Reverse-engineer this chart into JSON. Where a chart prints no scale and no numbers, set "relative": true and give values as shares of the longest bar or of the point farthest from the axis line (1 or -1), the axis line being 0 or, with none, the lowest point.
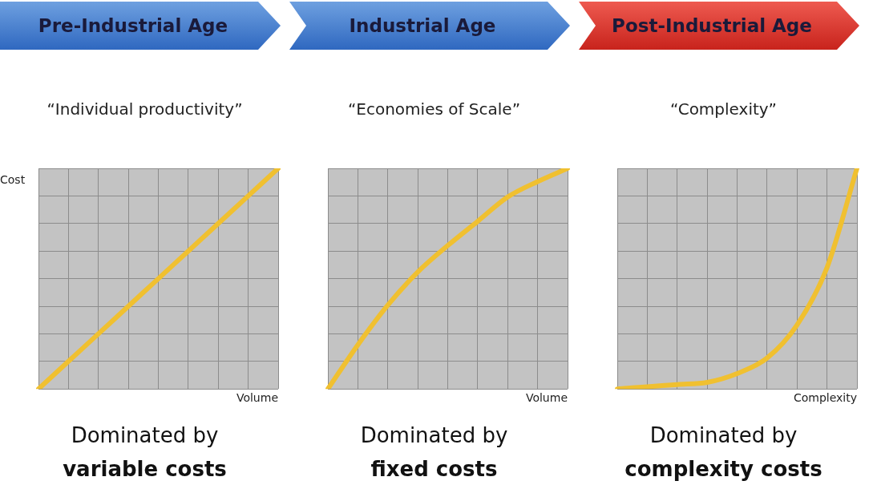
{
  "chart_data": [
    {
      "type": "line",
      "title": "Pre-Industrial Age",
      "subtitle": "“Individual productivity”",
      "xlabel": "Volume",
      "ylabel": "Cost",
      "relative": true,
      "grid": true,
      "categories": [
        null,
        null,
        null,
        null,
        null,
        null,
        null,
        null,
        null
      ],
      "series": [
        {
          "color": "#f0c030",
          "values": [
            0,
            0.125,
            0.25,
            0.375,
            0.5,
            0.625,
            0.75,
            0.875,
            1
          ]
        }
      ],
      "annotations": [
        "Dominated by",
        "variable costs"
      ]
    },
    {
      "type": "line",
      "title": "Industrial Age",
      "subtitle": "“Economies of Scale”",
      "xlabel": "Volume",
      "relative": true,
      "grid": true,
      "categories": [
        null,
        null,
        null,
        null,
        null,
        null,
        null,
        null,
        null
      ],
      "series": [
        {
          "color": "#f0c030",
          "values": [
            0,
            0.2,
            0.38,
            0.53,
            0.65,
            0.76,
            0.87,
            0.94,
            1
          ]
        }
      ],
      "annotations": [
        "Dominated by",
        "fixed costs"
      ]
    },
    {
      "type": "line",
      "title": "Post-Industrial Age",
      "subtitle": "“Complexity”",
      "xlabel": "Complexity",
      "relative": true,
      "grid": true,
      "categories": [
        null,
        null,
        null,
        null,
        null,
        null,
        null,
        null,
        null
      ],
      "series": [
        {
          "color": "#f0c030",
          "values": [
            0,
            0.01,
            0.02,
            0.03,
            0.07,
            0.14,
            0.29,
            0.55,
            1
          ]
        }
      ],
      "annotations": [
        "Dominated by",
        "complexity costs"
      ]
    }
  ]
}
